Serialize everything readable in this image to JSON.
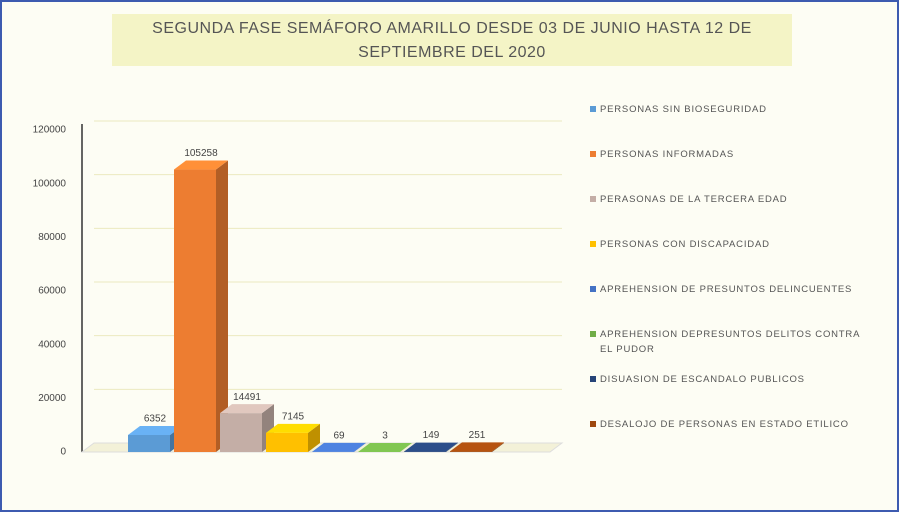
{
  "chart_data": {
    "type": "bar",
    "title": "SEGUNDA FASE SEMÁFORO AMARILLO DESDE 03 DE JUNIO HASTA 12 DE SEPTIEMBRE DEL 2020",
    "series": [
      {
        "name": "PERSONAS SIN BIOSEGURIDAD",
        "color": "#5b9bd5",
        "values": [
          6352
        ]
      },
      {
        "name": "PERSONAS INFORMADAS",
        "color": "#ed7d31",
        "values": [
          105258
        ]
      },
      {
        "name": "PERASONAS DE LA TERCERA EDAD",
        "color": "#c4aea6",
        "values": [
          14491
        ]
      },
      {
        "name": "PERSONAS CON DISCAPACIDAD",
        "color": "#ffc000",
        "values": [
          7145
        ]
      },
      {
        "name": "APREHENSION DE PRESUNTOS DELINCUENTES",
        "color": "#4472c4",
        "values": [
          69
        ]
      },
      {
        "name": "APREHENSION DEPRESUNTOS DELITOS CONTRA EL PUDOR",
        "color": "#70ad47",
        "values": [
          3
        ]
      },
      {
        "name": "DISUASION DE ESCANDALO PUBLICOS",
        "color": "#264478",
        "values": [
          149
        ]
      },
      {
        "name": "DESALOJO DE PERSONAS EN ESTADO ETILICO",
        "color": "#9e480e",
        "values": [
          251
        ]
      }
    ],
    "ylim": [
      0,
      120000
    ],
    "yticks": [
      0,
      20000,
      40000,
      60000,
      80000,
      100000,
      120000
    ],
    "grid": true,
    "legend": "right"
  }
}
